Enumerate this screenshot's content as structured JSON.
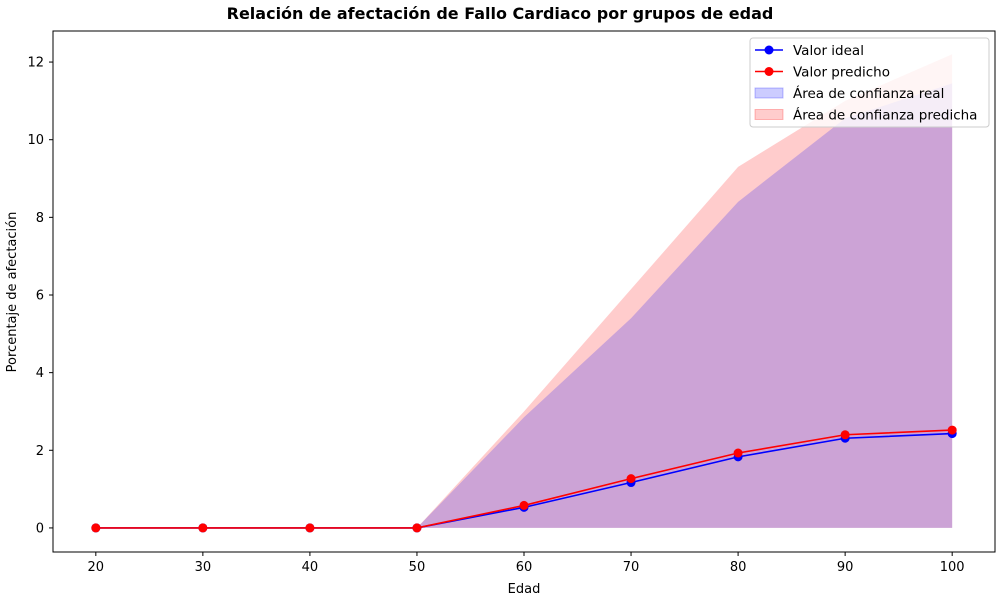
{
  "chart_data": {
    "type": "line",
    "title": "Relación de afectación de Fallo Cardiaco por grupos de edad",
    "xlabel": "Edad",
    "ylabel": "Porcentaje de afectación",
    "x": [
      20,
      30,
      40,
      50,
      60,
      70,
      80,
      90,
      100
    ],
    "xlim": [
      16,
      104
    ],
    "ylim": [
      -0.62,
      12.8
    ],
    "xticks": [
      20,
      30,
      40,
      50,
      60,
      70,
      80,
      90,
      100
    ],
    "yticks": [
      0,
      2,
      4,
      6,
      8,
      10,
      12
    ],
    "grid": false,
    "legend_position": "top-right",
    "series": [
      {
        "name": "Valor ideal",
        "kind": "line",
        "color": "#0000ff",
        "values": [
          0,
          0,
          0,
          0,
          0.53,
          1.17,
          1.83,
          2.31,
          2.43
        ]
      },
      {
        "name": "Valor predicho",
        "kind": "line",
        "color": "#ff0000",
        "values": [
          0,
          0,
          0,
          0,
          0.58,
          1.27,
          1.93,
          2.4,
          2.52
        ]
      },
      {
        "name": "Área de confianza real",
        "kind": "band",
        "color": "#0000ff",
        "lower": [
          0,
          0,
          0,
          0,
          0,
          0,
          0,
          0,
          0
        ],
        "upper": [
          0,
          0,
          0,
          0,
          2.85,
          5.4,
          8.4,
          10.55,
          11.45
        ]
      },
      {
        "name": "Área de confianza predicha",
        "kind": "band",
        "color": "#ff0000",
        "lower": [
          0,
          0,
          0,
          0,
          0,
          0,
          0,
          0,
          0
        ],
        "upper": [
          0,
          0,
          0,
          0,
          3.0,
          6.15,
          9.3,
          11.0,
          12.2
        ]
      }
    ]
  }
}
